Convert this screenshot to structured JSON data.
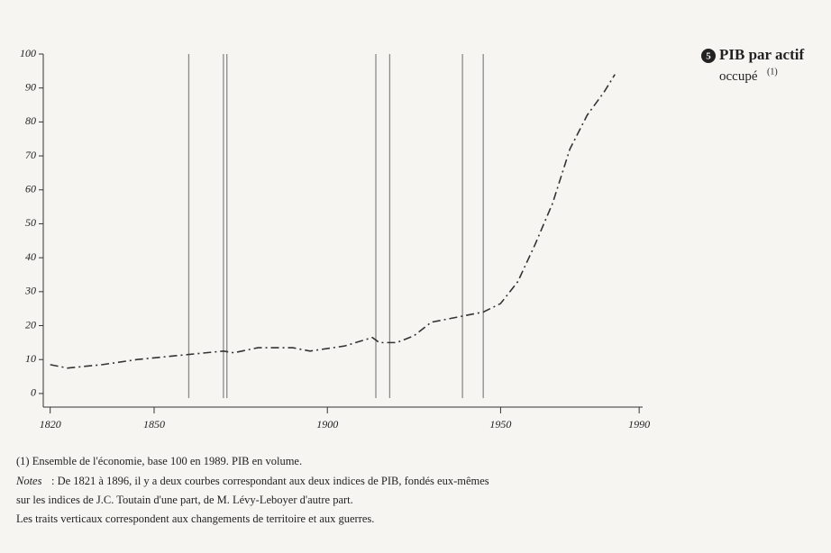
{
  "chart_data": {
    "type": "line",
    "badge": "5",
    "title": "PIB par actif occupé",
    "title_sup": "(1)",
    "x": [
      1820,
      1825,
      1835,
      1845,
      1860,
      1870,
      1873,
      1880,
      1890,
      1895,
      1905,
      1913,
      1915,
      1920,
      1925,
      1930,
      1935,
      1945,
      1950,
      1955,
      1960,
      1965,
      1970,
      1975,
      1980,
      1983
    ],
    "series": [
      {
        "color": "#333333",
        "values": [
          8.5,
          7.5,
          8.5,
          10,
          11.5,
          12.5,
          12,
          13.5,
          13.5,
          12.5,
          14,
          16.5,
          15,
          15,
          17,
          21,
          22,
          24,
          26.5,
          33,
          44,
          56,
          72,
          82,
          89,
          94
        ]
      }
    ],
    "vertical_lines": [
      1860,
      1870,
      1871,
      1914,
      1918,
      1939,
      1945
    ],
    "vertical_line_color": "#8a8a8a",
    "xlim": [
      1818,
      1991
    ],
    "xticks": [
      1820,
      1850,
      1900,
      1950,
      1990
    ],
    "ylim": [
      -4,
      100
    ],
    "yticks": [
      0,
      10,
      20,
      30,
      40,
      50,
      60,
      70,
      80,
      90,
      100
    ],
    "footnote": "(1) Ensemble de l'économie, base 100 en 1989. PIB en volume.",
    "notes_label": "Notes",
    "notes": [
      ": De 1821 à 1896, il y a deux courbes correspondant aux deux indices de PIB, fondés eux-mêmes",
      "sur les indices de J.C. Toutain d'une part, de M. Lévy-Leboyer d'autre part.",
      "Les traits verticaux correspondent aux changements de territoire et aux guerres."
    ]
  }
}
